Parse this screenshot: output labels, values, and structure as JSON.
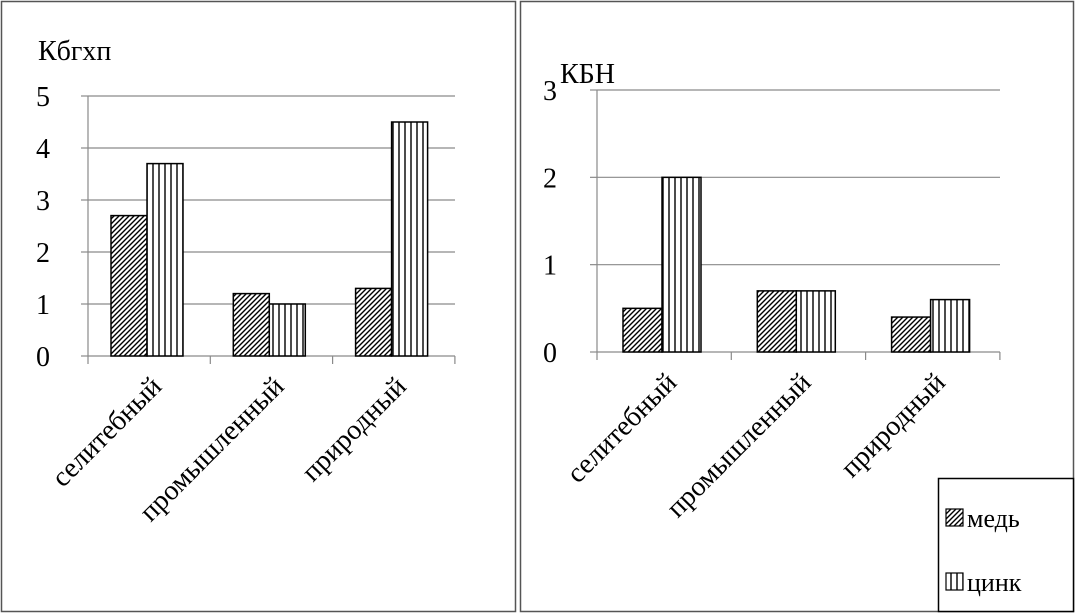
{
  "legend": {
    "items": [
      {
        "label": "медь",
        "pattern": "diag"
      },
      {
        "label": "цинк",
        "pattern": "vert"
      }
    ]
  },
  "chart_data": [
    {
      "type": "bar",
      "ylabel": "Кбгхп",
      "categories": [
        "селитебный",
        "промышленный",
        "природный"
      ],
      "series": [
        {
          "name": "медь",
          "values": [
            2.7,
            1.2,
            1.3
          ]
        },
        {
          "name": "цинк",
          "values": [
            3.7,
            1.0,
            4.5
          ]
        }
      ],
      "ylim": [
        0,
        5
      ],
      "yticks": [
        0,
        1,
        2,
        3,
        4,
        5
      ],
      "ytick_labels": [
        "0",
        "1",
        "2",
        "3",
        "4",
        "5"
      ],
      "grid": true,
      "legend_position": "none"
    },
    {
      "type": "bar",
      "ylabel": "КБН",
      "categories": [
        "селитебный",
        "промышленный",
        "природный"
      ],
      "series": [
        {
          "name": "медь",
          "values": [
            0.5,
            0.7,
            0.4
          ]
        },
        {
          "name": "цинк",
          "values": [
            2.0,
            0.7,
            0.6
          ]
        }
      ],
      "ylim": [
        0,
        3
      ],
      "yticks": [
        0,
        1,
        2,
        3
      ],
      "ytick_labels": [
        "0",
        "1",
        "2",
        "3"
      ],
      "grid": true,
      "legend_position": "bottom-right"
    }
  ]
}
